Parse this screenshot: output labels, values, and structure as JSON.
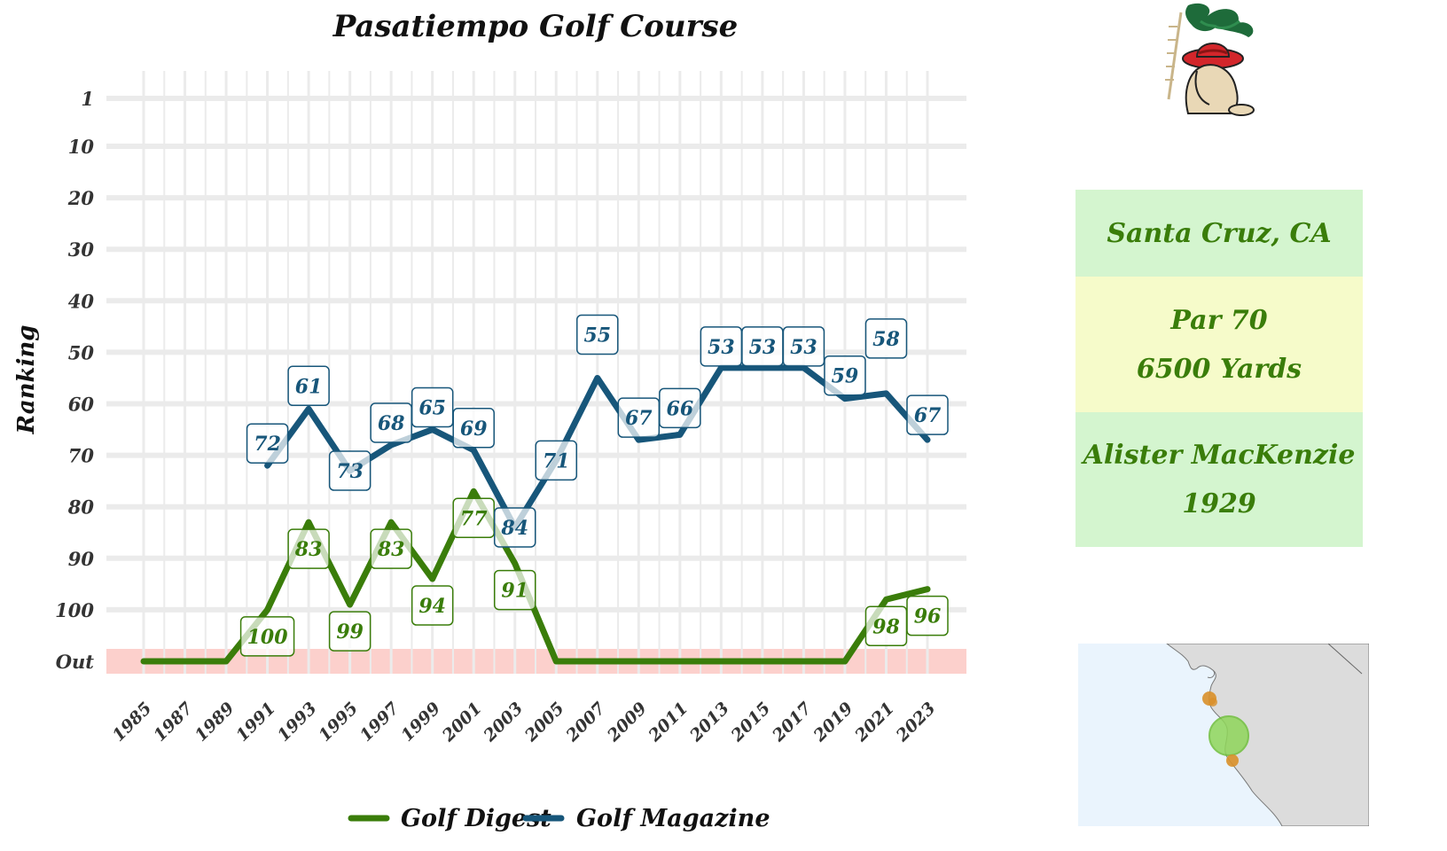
{
  "chart_data": {
    "type": "line",
    "title": "Pasatiempo Golf Course",
    "ylabel": "Ranking",
    "xlabel": "",
    "x_ticks": [
      "1985",
      "1987",
      "1989",
      "1991",
      "1993",
      "1995",
      "1997",
      "1999",
      "2001",
      "2003",
      "2005",
      "2007",
      "2009",
      "2011",
      "2013",
      "2015",
      "2017",
      "2019",
      "2021",
      "2023"
    ],
    "y_ticks": [
      "1",
      "10",
      "20",
      "30",
      "40",
      "50",
      "60",
      "70",
      "80",
      "90",
      "100",
      "Out"
    ],
    "y_tick_values": [
      1,
      10,
      20,
      30,
      40,
      50,
      60,
      70,
      80,
      90,
      100,
      110
    ],
    "ylim": [
      1,
      110
    ],
    "y_reversed": true,
    "out_label": "Out",
    "out_band_color": "#fcd0cc",
    "grid": true,
    "legend_position": "bottom",
    "series": [
      {
        "name": "Golf Digest",
        "color": "#3a7d0a",
        "x": [
          1985,
          1987,
          1989,
          1991,
          1993,
          1995,
          1997,
          1999,
          2001,
          2003,
          2005,
          2007,
          2009,
          2011,
          2013,
          2015,
          2017,
          2019,
          2021,
          2023
        ],
        "y": [
          "Out",
          "Out",
          "Out",
          100,
          83,
          99,
          83,
          94,
          77,
          91,
          "Out",
          "Out",
          "Out",
          "Out",
          "Out",
          "Out",
          "Out",
          "Out",
          98,
          96
        ],
        "labels": [
          {
            "x": 1991,
            "text": "100"
          },
          {
            "x": 1993,
            "text": "83"
          },
          {
            "x": 1995,
            "text": "99"
          },
          {
            "x": 1997,
            "text": "83"
          },
          {
            "x": 1999,
            "text": "94"
          },
          {
            "x": 2001,
            "text": "77"
          },
          {
            "x": 2003,
            "text": "91"
          },
          {
            "x": 2021,
            "text": "98"
          },
          {
            "x": 2023,
            "text": "96"
          }
        ]
      },
      {
        "name": "Golf Magazine",
        "color": "#17567a",
        "x": [
          1991,
          1993,
          1995,
          1997,
          1999,
          2001,
          2003,
          2005,
          2007,
          2009,
          2011,
          2013,
          2015,
          2017,
          2019,
          2021,
          2023
        ],
        "y": [
          72,
          61,
          73,
          68,
          65,
          69,
          84,
          71,
          55,
          67,
          66,
          53,
          53,
          53,
          59,
          58,
          67
        ],
        "labels": [
          {
            "x": 1991,
            "text": "72"
          },
          {
            "x": 1993,
            "text": "61"
          },
          {
            "x": 1995,
            "text": "73"
          },
          {
            "x": 1997,
            "text": "68"
          },
          {
            "x": 1999,
            "text": "65"
          },
          {
            "x": 2001,
            "text": "69"
          },
          {
            "x": 2003,
            "text": "84"
          },
          {
            "x": 2005,
            "text": "71"
          },
          {
            "x": 2007,
            "text": "55"
          },
          {
            "x": 2009,
            "text": "67"
          },
          {
            "x": 2011,
            "text": "66"
          },
          {
            "x": 2013,
            "text": "53"
          },
          {
            "x": 2015,
            "text": "53"
          },
          {
            "x": 2017,
            "text": "53"
          },
          {
            "x": 2019,
            "text": "59"
          },
          {
            "x": 2021,
            "text": "58"
          },
          {
            "x": 2023,
            "text": "67"
          }
        ]
      }
    ]
  },
  "info": {
    "location": "Santa Cruz, CA",
    "par": "Par 70",
    "yards": "6500 Yards",
    "architect": "Alister MacKenzie",
    "year": "1929"
  },
  "icons": {
    "logo": "golfer-sombrero-logo-icon",
    "map": "california-coast-map"
  },
  "colors": {
    "info_green_bg": "#d4f5cf",
    "info_yellow_bg": "#f6fbca",
    "info_text": "#3a7d0a",
    "map_water": "#eaf4fd",
    "map_land": "#dcdcdc",
    "course_marker": "#8fd65a",
    "other_marker": "#d9902a"
  }
}
